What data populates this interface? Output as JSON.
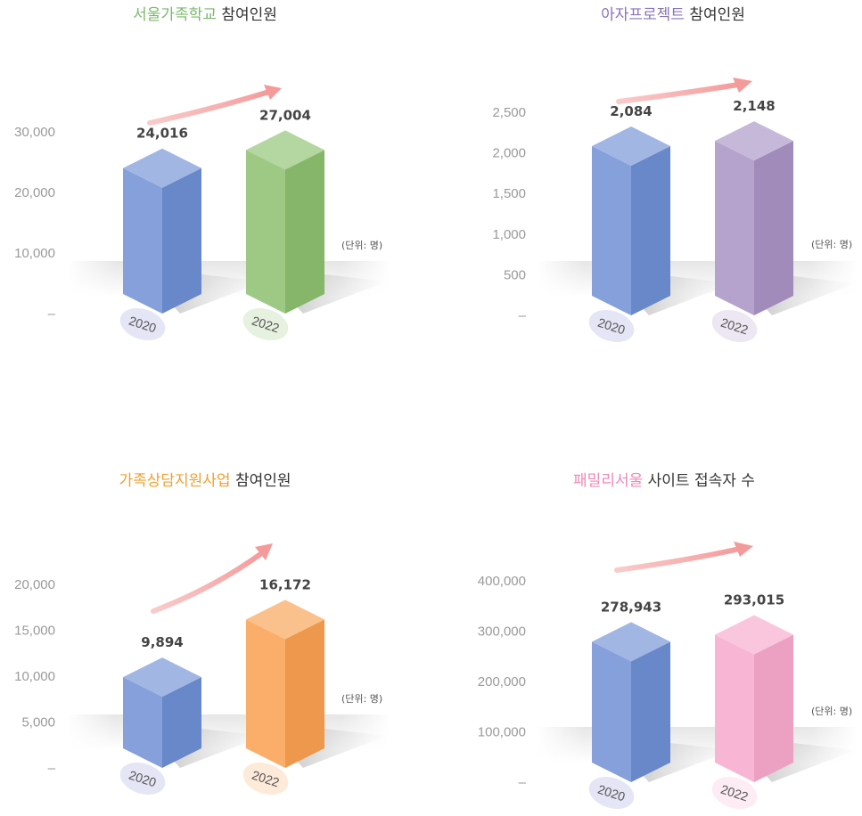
{
  "chart_data": [
    {
      "type": "bar",
      "title_highlight": "서울가족학교",
      "title_rest": "참여인원",
      "title_color": "#7ab86a",
      "categories": [
        "2020",
        "2022"
      ],
      "values": [
        24016,
        27004
      ],
      "value_labels": [
        "24,016",
        "27,004"
      ],
      "yticks": [
        0,
        10000,
        20000,
        30000
      ],
      "ytick_labels": [
        "–",
        "10,000",
        "20,000",
        "30,000"
      ],
      "ylim": [
        0,
        30000
      ],
      "unit": "(단위: 명)",
      "colors": [
        "#6f8fd4",
        "#8cc06f"
      ]
    },
    {
      "type": "bar",
      "title_highlight": "아자프로젝트",
      "title_rest": "참여인원",
      "title_color": "#8a74b8",
      "categories": [
        "2020",
        "2022"
      ],
      "values": [
        2084,
        2148
      ],
      "value_labels": [
        "2,084",
        "2,148"
      ],
      "yticks": [
        0,
        500,
        1000,
        1500,
        2000,
        2500
      ],
      "ytick_labels": [
        "–",
        "500",
        "1,000",
        "1,500",
        "2,000",
        "2,500"
      ],
      "ylim": [
        0,
        2500
      ],
      "unit": "(단위: 명)",
      "colors": [
        "#6f8fd4",
        "#a892c4"
      ]
    },
    {
      "type": "bar",
      "title_highlight": "가족상담지원사업",
      "title_rest": "참여인원",
      "title_color": "#f0a030",
      "categories": [
        "2020",
        "2022"
      ],
      "values": [
        9894,
        16172
      ],
      "value_labels": [
        "9,894",
        "16,172"
      ],
      "yticks": [
        0,
        5000,
        10000,
        15000,
        20000
      ],
      "ytick_labels": [
        "–",
        "5,000",
        "10,000",
        "15,000",
        "20,000"
      ],
      "ylim": [
        0,
        20000
      ],
      "unit": "(단위: 명)",
      "colors": [
        "#6f8fd4",
        "#f9a050"
      ]
    },
    {
      "type": "bar",
      "title_highlight": "패밀리서울",
      "title_rest": "사이트 접속자 수",
      "title_color": "#ee88b8",
      "categories": [
        "2020",
        "2022"
      ],
      "values": [
        278943,
        293015
      ],
      "value_labels": [
        "278,943",
        "293,015"
      ],
      "yticks": [
        0,
        100000,
        200000,
        300000,
        400000
      ],
      "ytick_labels": [
        "–",
        "100,000",
        "200,000",
        "300,000",
        "400,000"
      ],
      "ylim": [
        0,
        400000
      ],
      "unit": "(단위: 명)",
      "colors": [
        "#6f8fd4",
        "#f8a8cc"
      ]
    }
  ]
}
